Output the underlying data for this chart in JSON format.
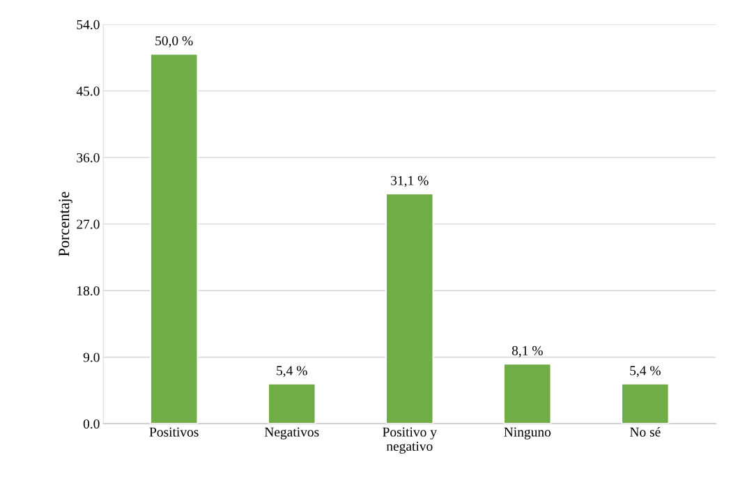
{
  "chart_data": {
    "type": "bar",
    "ylabel": "Porcentaje",
    "categories": [
      "Positivos",
      "Negativos",
      "Positivo y\nnegativo",
      "Ninguno",
      "No sé"
    ],
    "values": [
      50.0,
      5.4,
      31.1,
      8.1,
      5.4
    ],
    "value_labels": [
      "50,0 %",
      "5,4 %",
      "31,1 %",
      "8,1 %",
      "5,4 %"
    ],
    "color": "#70ad47",
    "ylim": [
      0,
      54
    ],
    "yticks": [
      {
        "value": 0,
        "label": "0.0"
      },
      {
        "value": 9,
        "label": "9.0"
      },
      {
        "value": 18,
        "label": "18.0"
      },
      {
        "value": 27,
        "label": "27.0"
      },
      {
        "value": 36,
        "label": "36.0"
      },
      {
        "value": 45,
        "label": "45.0"
      },
      {
        "value": 54,
        "label": "54.0"
      }
    ],
    "grid": "y"
  }
}
